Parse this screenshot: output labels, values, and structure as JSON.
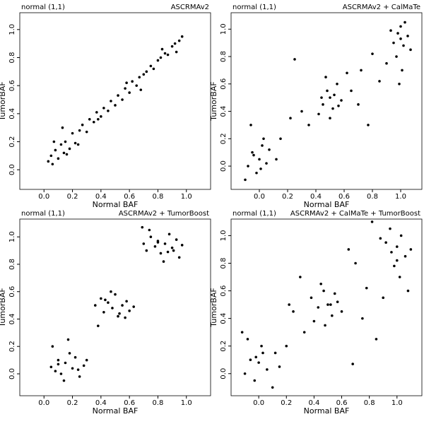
{
  "chart_data": [
    {
      "type": "scatter",
      "subtitle": "normal (1,1)",
      "title": "ASCRMAv2",
      "xlabel": "Normal BAF",
      "ylabel": "TumorBAF",
      "color": "#000000",
      "xlim": [
        -0.17,
        1.17
      ],
      "ylim": [
        -0.14,
        1.12
      ],
      "xticks": [
        {
          "value": 0,
          "label": "0.0"
        },
        {
          "value": 0.2,
          "label": "0.2"
        },
        {
          "value": 0.4,
          "label": "0.4"
        },
        {
          "value": 0.6,
          "label": "0.6"
        },
        {
          "value": 0.8,
          "label": "0.8"
        },
        {
          "value": 1,
          "label": "1.0"
        }
      ],
      "yticks": [
        {
          "value": 0,
          "label": "0.0"
        },
        {
          "value": 0.2,
          "label": "0.2"
        },
        {
          "value": 0.4,
          "label": "0.4"
        },
        {
          "value": 0.6,
          "label": "0.6"
        },
        {
          "value": 0.8,
          "label": "0.8"
        },
        {
          "value": 1,
          "label": "1.0"
        }
      ],
      "x": [
        0.03,
        0.05,
        0.06,
        0.08,
        0.1,
        0.12,
        0.14,
        0.15,
        0.18,
        0.2,
        0.22,
        0.25,
        0.27,
        0.3,
        0.32,
        0.35,
        0.37,
        0.4,
        0.42,
        0.45,
        0.47,
        0.5,
        0.52,
        0.55,
        0.57,
        0.6,
        0.62,
        0.65,
        0.67,
        0.7,
        0.72,
        0.75,
        0.77,
        0.8,
        0.82,
        0.85,
        0.87,
        0.9,
        0.92,
        0.95,
        0.97,
        0.07,
        0.13,
        0.24,
        0.38,
        0.58,
        0.68,
        0.83,
        0.93,
        0.16
      ],
      "y": [
        0.06,
        0.1,
        0.04,
        0.14,
        0.08,
        0.18,
        0.12,
        0.2,
        0.15,
        0.26,
        0.19,
        0.28,
        0.32,
        0.27,
        0.36,
        0.34,
        0.41,
        0.38,
        0.44,
        0.42,
        0.49,
        0.46,
        0.53,
        0.5,
        0.58,
        0.55,
        0.63,
        0.6,
        0.66,
        0.68,
        0.7,
        0.74,
        0.72,
        0.78,
        0.8,
        0.83,
        0.82,
        0.88,
        0.9,
        0.92,
        0.95,
        0.2,
        0.3,
        0.18,
        0.36,
        0.62,
        0.57,
        0.86,
        0.84,
        0.11
      ]
    },
    {
      "type": "scatter",
      "subtitle": "normal (1,1)",
      "title": "ASCRMAv2 + CalMaTe",
      "xlabel": "Normal BAF",
      "ylabel": "TumorBAF",
      "color": "#000000",
      "xlim": [
        -0.2,
        1.15
      ],
      "ylim": [
        -0.17,
        1.12
      ],
      "xticks": [
        {
          "value": 0,
          "label": "0.0"
        },
        {
          "value": 0.2,
          "label": "0.2"
        },
        {
          "value": 0.4,
          "label": "0.4"
        },
        {
          "value": 0.6,
          "label": "0.6"
        },
        {
          "value": 0.8,
          "label": "0.8"
        },
        {
          "value": 1,
          "label": "1.0"
        }
      ],
      "yticks": [
        {
          "value": 0,
          "label": "0.0"
        },
        {
          "value": 0.2,
          "label": "0.2"
        },
        {
          "value": 0.4,
          "label": "0.4"
        },
        {
          "value": 0.6,
          "label": "0.6"
        },
        {
          "value": 0.8,
          "label": "0.8"
        },
        {
          "value": 1,
          "label": "1.0"
        }
      ],
      "x": [
        -0.08,
        -0.05,
        -0.02,
        0,
        0.02,
        0.05,
        -0.1,
        0.03,
        -0.04,
        0.01,
        0.07,
        -0.06,
        0.45,
        0.48,
        0.5,
        0.52,
        0.55,
        0.42,
        0.58,
        0.47,
        0.53,
        0.5,
        0.44,
        0.56,
        0.95,
        0.98,
        1.0,
        1.02,
        1.05,
        0.97,
        1.03,
        1.0,
        0.93,
        1.07,
        1.01,
        0.99,
        0.15,
        0.22,
        0.3,
        0.35,
        0.25,
        0.65,
        0.72,
        0.8,
        0.7,
        0.85,
        0.12,
        0.62,
        0.77,
        0.9
      ],
      "y": [
        0.0,
        0.1,
        -0.05,
        0.05,
        0.15,
        0.02,
        -0.1,
        0.2,
        0.08,
        -0.02,
        0.12,
        0.3,
        0.45,
        0.55,
        0.5,
        0.42,
        0.6,
        0.38,
        0.48,
        0.65,
        0.52,
        0.35,
        0.5,
        0.44,
        0.9,
        0.97,
        1.02,
        0.88,
        0.95,
        0.8,
        1.05,
        0.93,
        0.99,
        0.85,
        0.7,
        0.6,
        0.2,
        0.35,
        0.4,
        0.3,
        0.78,
        0.55,
        0.7,
        0.82,
        0.45,
        0.62,
        0.05,
        0.68,
        0.3,
        0.75
      ]
    },
    {
      "type": "scatter",
      "subtitle": "normal (1,1)",
      "title": "ASCRMAv2 + TumorBoost",
      "xlabel": "Normal BAF",
      "ylabel": "TumorBAF",
      "color": "#000000",
      "xlim": [
        -0.17,
        1.17
      ],
      "ylim": [
        -0.16,
        1.13
      ],
      "xticks": [
        {
          "value": 0,
          "label": "0.0"
        },
        {
          "value": 0.2,
          "label": "0.2"
        },
        {
          "value": 0.4,
          "label": "0.4"
        },
        {
          "value": 0.6,
          "label": "0.6"
        },
        {
          "value": 0.8,
          "label": "0.8"
        },
        {
          "value": 1,
          "label": "1.0"
        }
      ],
      "yticks": [
        {
          "value": 0,
          "label": "0.0"
        },
        {
          "value": 0.2,
          "label": "0.2"
        },
        {
          "value": 0.4,
          "label": "0.4"
        },
        {
          "value": 0.6,
          "label": "0.6"
        },
        {
          "value": 0.8,
          "label": "0.8"
        },
        {
          "value": 1,
          "label": "1.0"
        }
      ],
      "x": [
        0.05,
        0.08,
        0.1,
        0.12,
        0.15,
        0.18,
        0.2,
        0.22,
        0.25,
        0.28,
        0.06,
        0.14,
        0.3,
        0.17,
        0.1,
        0.24,
        0.36,
        0.4,
        0.42,
        0.45,
        0.48,
        0.5,
        0.52,
        0.55,
        0.58,
        0.6,
        0.63,
        0.38,
        0.47,
        0.57,
        0.43,
        0.53,
        0.7,
        0.72,
        0.75,
        0.78,
        0.8,
        0.82,
        0.85,
        0.88,
        0.9,
        0.93,
        0.95,
        0.97,
        0.74,
        0.84,
        0.91,
        0.69,
        0.8,
        0.87
      ],
      "y": [
        0.05,
        0.02,
        0.1,
        0.0,
        0.08,
        0.15,
        0.04,
        0.12,
        -0.02,
        0.06,
        0.2,
        -0.05,
        0.1,
        0.25,
        0.07,
        0.03,
        0.5,
        0.55,
        0.45,
        0.52,
        0.48,
        0.58,
        0.42,
        0.5,
        0.53,
        0.46,
        0.49,
        0.35,
        0.6,
        0.41,
        0.54,
        0.44,
        0.95,
        0.9,
        1.0,
        0.93,
        0.97,
        0.88,
        0.95,
        1.02,
        0.92,
        0.98,
        0.85,
        0.94,
        1.05,
        0.82,
        0.9,
        1.07,
        0.96,
        0.89
      ]
    },
    {
      "type": "scatter",
      "subtitle": "normal (1,1)",
      "title": "ASCRMAv2 + CalMaTe + TumorBoost",
      "xlabel": "Normal BAF",
      "ylabel": "TumorBAF",
      "color": "#000000",
      "xlim": [
        -0.2,
        1.18
      ],
      "ylim": [
        -0.16,
        1.12
      ],
      "xticks": [
        {
          "value": 0,
          "label": "0.0"
        },
        {
          "value": 0.2,
          "label": "0.2"
        },
        {
          "value": 0.4,
          "label": "0.4"
        },
        {
          "value": 0.6,
          "label": "0.6"
        },
        {
          "value": 0.8,
          "label": "0.8"
        },
        {
          "value": 1,
          "label": "1.0"
        }
      ],
      "yticks": [
        {
          "value": 0,
          "label": "0.0"
        },
        {
          "value": 0.2,
          "label": "0.2"
        },
        {
          "value": 0.4,
          "label": "0.4"
        },
        {
          "value": 0.6,
          "label": "0.6"
        },
        {
          "value": 0.8,
          "label": "0.8"
        },
        {
          "value": 1,
          "label": "1.0"
        }
      ],
      "x": [
        -0.1,
        -0.06,
        -0.03,
        0,
        0.03,
        0.06,
        -0.08,
        0.1,
        -0.02,
        0.02,
        0.15,
        -0.12,
        0.38,
        0.43,
        0.47,
        0.5,
        0.53,
        0.57,
        0.45,
        0.6,
        0.4,
        0.55,
        0.48,
        0.52,
        0.92,
        0.96,
        1.0,
        1.03,
        1.06,
        0.98,
        1.1,
        0.95,
        1.02,
        0.88,
        1.08,
        1.0,
        0.2,
        0.25,
        0.3,
        0.33,
        0.7,
        0.75,
        0.78,
        0.82,
        0.65,
        0.22,
        0.85,
        0.12,
        0.68,
        0.9
      ],
      "y": [
        0.0,
        0.1,
        -0.05,
        0.08,
        0.15,
        0.03,
        0.25,
        -0.1,
        0.12,
        0.2,
        0.05,
        0.3,
        0.55,
        0.48,
        0.6,
        0.5,
        0.42,
        0.52,
        0.65,
        0.45,
        0.38,
        0.58,
        0.35,
        0.5,
        0.95,
        0.88,
        0.92,
        1.0,
        0.85,
        0.78,
        0.9,
        1.05,
        0.7,
        0.98,
        0.6,
        0.82,
        0.2,
        0.45,
        0.7,
        0.3,
        0.8,
        0.4,
        0.62,
        1.1,
        0.9,
        0.5,
        0.25,
        0.15,
        0.07,
        0.55
      ]
    }
  ]
}
